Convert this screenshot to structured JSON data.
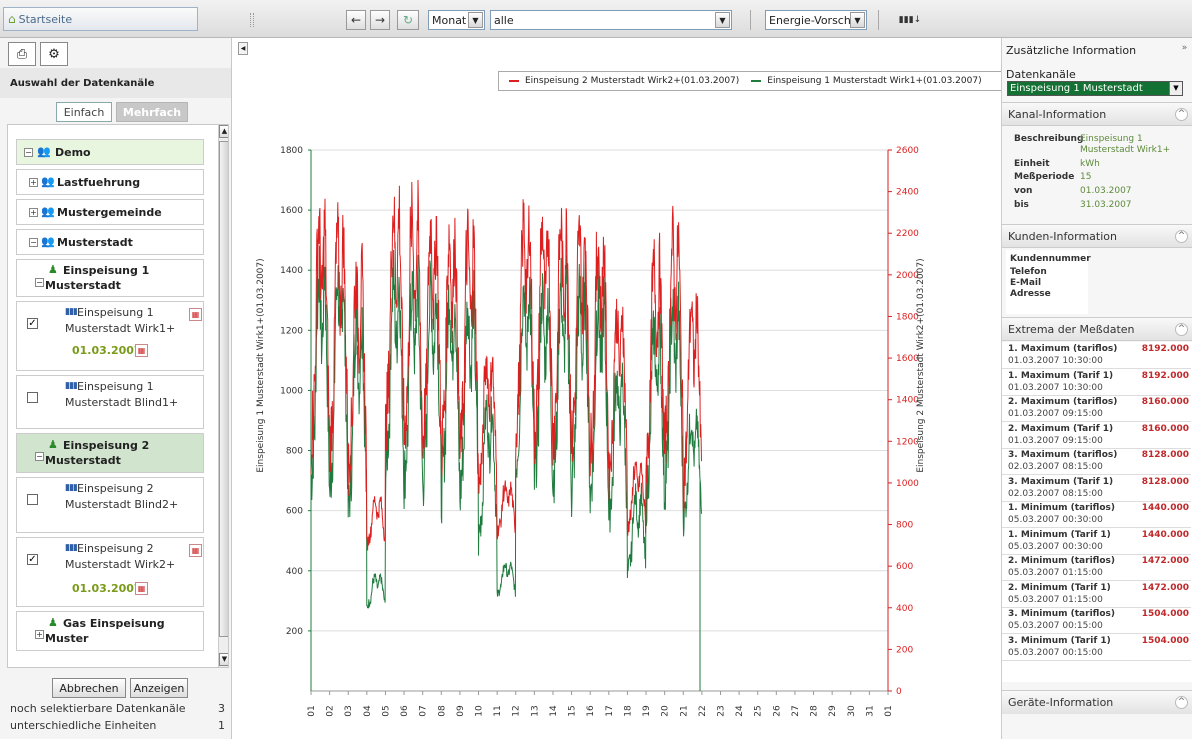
{
  "toolbar": {
    "home_label": "Startseite",
    "back": "←",
    "forward": "→",
    "refresh": "↻",
    "period": "Monat",
    "filter": "alle",
    "mode": "Energie-Vorschub",
    "chart_btn": "▮▮▮↓"
  },
  "left": {
    "heading": "Auswahl der Datenkanäle",
    "tab_simple": "Einfach",
    "tab_multi": "Mehrfach",
    "tree": {
      "demo": "Demo",
      "lastfuehrung": "Lastfuehrung",
      "mustergemeinde": "Mustergemeinde",
      "musterstadt": "Musterstadt",
      "einspeisung1_a": "Einspeisung 1",
      "einspeisung1_b": "Musterstadt",
      "ch1_a": "Einspeisung 1",
      "ch1_b": "Musterstadt Wirk1+",
      "ch1_date": "01.03.2007",
      "ch2_a": "Einspeisung 1",
      "ch2_b": "Musterstadt Blind1+",
      "einspeisung2_a": "Einspeisung 2",
      "einspeisung2_b": "Musterstadt",
      "ch3_a": "Einspeisung 2",
      "ch3_b": "Musterstadt Blind2+",
      "ch4_a": "Einspeisung 2",
      "ch4_b": "Musterstadt Wirk2+",
      "ch4_date": "01.03.2007",
      "gas_a": "Gas Einspeisung",
      "gas_b": "Muster"
    },
    "cancel": "Abbrechen",
    "show": "Anzeigen",
    "stat1_label": "noch selektierbare Datenkanäle",
    "stat1_value": "3",
    "stat2_label": "unterschiedliche Einheiten",
    "stat2_value": "1"
  },
  "chart_data": {
    "type": "line",
    "legend_position": "top-right",
    "series": [
      {
        "name": "Einspeisung 2 Musterstadt Wirk2+(01.03.2007)",
        "axis": "right",
        "color": "#dd1f1f"
      },
      {
        "name": "Einspeisung 1 Musterstadt Wirk1+(01.03.2007)",
        "axis": "left",
        "color": "#1f7b3e"
      }
    ],
    "ylabel_left": "Einspeisung 1 Musterstadt Wirk1+(01.03.2007)",
    "ylabel_right": "Einspeisung 2 Musterstadt Wirk2+(01.03.2007)",
    "ylim_left": [
      0,
      1800
    ],
    "ylim_right": [
      0,
      2600
    ],
    "yticks_left": [
      200,
      400,
      600,
      800,
      1000,
      1200,
      1400,
      1600,
      1800
    ],
    "yticks_right": [
      0,
      200,
      400,
      600,
      800,
      1000,
      1200,
      1400,
      1600,
      1800,
      2000,
      2200,
      2400,
      2600
    ],
    "x_categories": [
      "01",
      "02",
      "03",
      "04",
      "05",
      "06",
      "07",
      "08",
      "09",
      "10",
      "11",
      "12",
      "13",
      "14",
      "15",
      "16",
      "17",
      "18",
      "19",
      "20",
      "21",
      "22",
      "23",
      "24",
      "25",
      "26",
      "27",
      "28",
      "29",
      "30",
      "31",
      "01"
    ],
    "grid": true,
    "day_profile": {
      "days": [
        "01",
        "02",
        "03",
        "04",
        "05",
        "06",
        "07",
        "08",
        "09",
        "10",
        "11",
        "12",
        "13",
        "14",
        "15",
        "16",
        "17",
        "18",
        "19",
        "20",
        "21"
      ],
      "wirk1_high": [
        1400,
        1380,
        1250,
        380,
        1380,
        1350,
        1350,
        1330,
        1300,
        950,
        420,
        1350,
        1320,
        1350,
        1330,
        1300,
        1050,
        650,
        1200,
        1280,
        900
      ],
      "wirk1_low": [
        560,
        520,
        470,
        260,
        600,
        570,
        550,
        530,
        520,
        420,
        300,
        620,
        580,
        560,
        540,
        520,
        480,
        330,
        520,
        560,
        500
      ],
      "wirk2_high": [
        2260,
        2200,
        2000,
        920,
        2320,
        2280,
        2250,
        2200,
        2180,
        1600,
        980,
        2260,
        2230,
        2240,
        2200,
        2150,
        1820,
        1080,
        2050,
        2180,
        1860
      ],
      "wirk2_low": [
        1000,
        950,
        880,
        660,
        1050,
        1000,
        980,
        950,
        930,
        850,
        720,
        1050,
        1020,
        1000,
        980,
        950,
        880,
        720,
        900,
        980,
        820
      ]
    }
  },
  "right": {
    "title": "Zusätzliche Information",
    "channels_label": "Datenkanäle",
    "channels_value": "Einspeisung 1 Musterstadt Wirk1+",
    "kanal_title": "Kanal-Information",
    "kanal": {
      "beschreibung_k": "Beschreibung",
      "beschreibung_v1": "Einspeisung 1",
      "beschreibung_v2": "Musterstadt Wirk1+",
      "einheit_k": "Einheit",
      "einheit_v": "kWh",
      "periode_k": "Meßperiode",
      "periode_v": "15",
      "von_k": "von",
      "von_v": "01.03.2007",
      "bis_k": "bis",
      "bis_v": "31.03.2007"
    },
    "kunden_title": "Kunden-Information",
    "kunden": {
      "k1": "Kundennummer",
      "k2": "Telefon",
      "k3": "E-Mail",
      "k4": "Adresse"
    },
    "extrema_title": "Extrema der Meßdaten",
    "extrema": [
      {
        "label": "1. Maximum (tariflos)",
        "date": "01.03.2007 10:30:00",
        "value": "8192.000"
      },
      {
        "label": "1. Maximum (Tarif 1)",
        "date": "01.03.2007 10:30:00",
        "value": "8192.000"
      },
      {
        "label": "2. Maximum (tariflos)",
        "date": "01.03.2007 09:15:00",
        "value": "8160.000"
      },
      {
        "label": "2. Maximum (Tarif 1)",
        "date": "01.03.2007 09:15:00",
        "value": "8160.000"
      },
      {
        "label": "3. Maximum (tariflos)",
        "date": "02.03.2007 08:15:00",
        "value": "8128.000"
      },
      {
        "label": "3. Maximum (Tarif 1)",
        "date": "02.03.2007 08:15:00",
        "value": "8128.000"
      },
      {
        "label": "1. Minimum (tariflos)",
        "date": "05.03.2007 00:30:00",
        "value": "1440.000"
      },
      {
        "label": "1. Minimum (Tarif 1)",
        "date": "05.03.2007 00:30:00",
        "value": "1440.000"
      },
      {
        "label": "2. Minimum (tariflos)",
        "date": "05.03.2007 01:15:00",
        "value": "1472.000"
      },
      {
        "label": "2. Minimum (Tarif 1)",
        "date": "05.03.2007 01:15:00",
        "value": "1472.000"
      },
      {
        "label": "3. Minimum (tariflos)",
        "date": "05.03.2007 00:15:00",
        "value": "1504.000"
      },
      {
        "label": "3. Minimum (Tarif 1)",
        "date": "05.03.2007 00:15:00",
        "value": "1504.000"
      }
    ],
    "geraete_title": "Geräte-Information"
  }
}
